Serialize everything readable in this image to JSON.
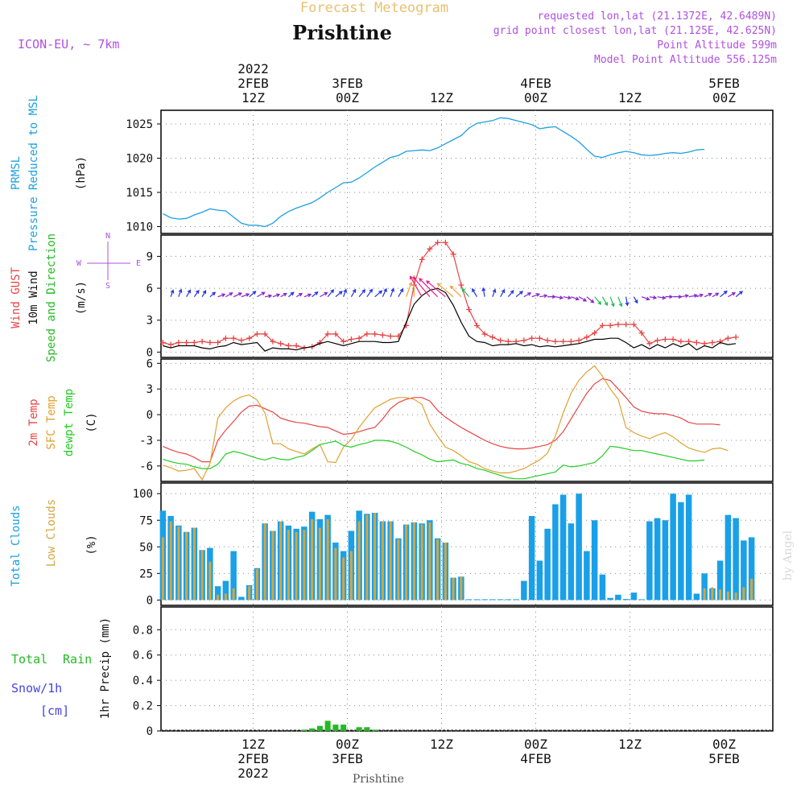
{
  "header": {
    "super_title": "Forecast Meteogram",
    "station": "Prishtine",
    "model": "ICON-EU, ~ 7km",
    "requested_point": "requested lon,lat (21.1372E, 42.6489N)",
    "grid_point": "grid point closest lon,lat (21.125E, 42.625N)",
    "point_altitude": "Point Altitude 599m",
    "model_altitude": "Model Point Altitude 556.125m",
    "footer_station": "Prishtine",
    "watermark": "by Angel"
  },
  "time_axis": {
    "hours": [
      0,
      12,
      24,
      36,
      48
    ],
    "top_labels": [
      {
        "hour": 0,
        "lines": [
          "2022",
          "2FEB",
          "12Z"
        ]
      },
      {
        "hour": 12,
        "lines": [
          "3FEB",
          "00Z"
        ]
      },
      {
        "hour": 24,
        "lines": [
          "12Z"
        ]
      },
      {
        "hour": 36,
        "lines": [
          "4FEB",
          "00Z"
        ]
      },
      {
        "hour": 48,
        "lines": [
          "12Z"
        ]
      },
      {
        "hour": 60,
        "lines": [
          "5FEB",
          "00Z"
        ]
      }
    ],
    "bottom_labels": [
      {
        "hour": 0,
        "lines": [
          "12Z",
          "2FEB",
          "2022"
        ]
      },
      {
        "hour": 12,
        "lines": [
          "00Z",
          "3FEB"
        ]
      },
      {
        "hour": 24,
        "lines": [
          "12Z"
        ]
      },
      {
        "hour": 36,
        "lines": [
          "00Z",
          "4FEB"
        ]
      },
      {
        "hour": 48,
        "lines": [
          "12Z"
        ]
      },
      {
        "hour": 60,
        "lines": [
          "00Z",
          "5FEB"
        ]
      }
    ]
  },
  "colors": {
    "pressure": "#1e9fe0",
    "gust": "#e84444",
    "wind": "#000000",
    "wind_label_green": "#22bb22",
    "temp2m": "#e84444",
    "sfctemp": "#e0a030",
    "dewpt": "#22cc22",
    "total_clouds": "#1aa0e8",
    "low_clouds": "#d4a640",
    "rain": "#22bb22",
    "snow": "#4444dd",
    "purple": "#b050e0",
    "title_orange": "#e8c070"
  },
  "chart_data": [
    {
      "type": "line",
      "title": "PRMSL Pressure Reduced to MSL",
      "panel_labels": [
        "PRMSL",
        "Pressure Reduced to MSL"
      ],
      "ylabel": "(hPa)",
      "yticks": [
        1010,
        1015,
        1020,
        1025
      ],
      "ylim": [
        1009,
        1027
      ],
      "x_start": -11.5,
      "x_step": 1,
      "series": [
        {
          "name": "PRMSL",
          "values": [
            1011.9,
            1011.3,
            1011.1,
            1011.2,
            1011.7,
            1012.1,
            1012.6,
            1012.4,
            1012.3,
            1011.4,
            1010.5,
            1010.2,
            1010.2,
            1010.0,
            1010.5,
            1011.5,
            1012.2,
            1012.7,
            1013.1,
            1013.5,
            1014.2,
            1015.0,
            1015.7,
            1016.4,
            1016.5,
            1017.1,
            1017.9,
            1018.7,
            1019.4,
            1020.1,
            1020.4,
            1021.0,
            1021.1,
            1021.2,
            1021.1,
            1021.5,
            1022.1,
            1022.7,
            1023.3,
            1024.4,
            1025.1,
            1025.3,
            1025.5,
            1025.9,
            1025.8,
            1025.5,
            1025.2,
            1024.9,
            1024.3,
            1024.5,
            1024.6,
            1023.9,
            1023.2,
            1022.4,
            1021.3,
            1020.3,
            1020.1,
            1020.5,
            1020.8,
            1021.0,
            1020.8,
            1020.5,
            1020.4,
            1020.5,
            1020.7,
            1020.8,
            1020.7,
            1020.9,
            1021.2,
            1021.3
          ]
        }
      ]
    },
    {
      "type": "line",
      "title": "Wind GUST / 10m Wind Speed and Direction",
      "panel_labels": [
        "Wind GUST",
        "10m Wind",
        "Speed and Direction"
      ],
      "ylabel": "(m/s)",
      "compass": [
        "N",
        "W",
        "E",
        "S"
      ],
      "yticks": [
        0,
        3,
        6,
        9
      ],
      "ylim": [
        -0.5,
        11
      ],
      "x_start": -11.5,
      "x_step": 1,
      "series": [
        {
          "name": "Wind GUST",
          "values": [
            0.9,
            0.7,
            0.9,
            0.9,
            0.9,
            1.0,
            0.9,
            0.9,
            1.3,
            1.3,
            1.1,
            1.3,
            1.7,
            1.7,
            1.0,
            0.8,
            0.6,
            0.6,
            0.4,
            0.5,
            0.9,
            1.7,
            1.7,
            1.0,
            1.2,
            1.3,
            1.7,
            1.7,
            1.6,
            1.5,
            1.5,
            2.5,
            6.3,
            8.7,
            9.7,
            10.3,
            10.3,
            9.2,
            6.3,
            4.0,
            2.5,
            1.7,
            1.4,
            1.1,
            1.0,
            1.0,
            1.1,
            1.3,
            1.3,
            1.1,
            1.0,
            1.0,
            1.0,
            1.1,
            1.4,
            1.8,
            2.5,
            2.5,
            2.6,
            2.6,
            2.6,
            1.8,
            0.8,
            1.1,
            1.2,
            1.2,
            1.0,
            1.0,
            0.9,
            0.8,
            0.9,
            1.0,
            1.3,
            1.4
          ]
        },
        {
          "name": "10m Wind",
          "values": [
            0.6,
            0.4,
            0.6,
            0.6,
            0.6,
            0.4,
            0.3,
            0.5,
            0.6,
            0.9,
            0.7,
            0.8,
            0.9,
            0.1,
            0.4,
            0.3,
            0.3,
            0.2,
            0.4,
            0.5,
            0.8,
            1.0,
            0.8,
            0.6,
            0.8,
            1.0,
            1.0,
            1.0,
            0.9,
            0.9,
            1.0,
            2.8,
            4.5,
            5.3,
            5.8,
            6.0,
            5.6,
            4.4,
            2.8,
            1.5,
            1.0,
            0.9,
            0.6,
            0.7,
            0.7,
            0.8,
            0.6,
            0.7,
            0.5,
            0.6,
            0.5,
            0.6,
            0.7,
            0.8,
            1.0,
            1.2,
            1.2,
            1.3,
            1.3,
            0.9,
            0.4,
            0.7,
            0.3,
            0.7,
            0.4,
            0.8,
            0.5,
            0.8,
            0.2,
            0.6,
            0.4,
            0.9,
            0.7,
            0.8
          ]
        }
      ],
      "barbs": {
        "y_level": 5.2,
        "dirs_deg": [
          200,
          200,
          210,
          215,
          210,
          230,
          250,
          240,
          245,
          250,
          230,
          240,
          260,
          250,
          240,
          230,
          240,
          250,
          230,
          240,
          220,
          230,
          200,
          210,
          220,
          215,
          230,
          205,
          200,
          210,
          200,
          180,
          150,
          140,
          135,
          130,
          130,
          135,
          140,
          150,
          170,
          200,
          210,
          220,
          230,
          240,
          250,
          260,
          270,
          280,
          280,
          290,
          300,
          310,
          320,
          330,
          340,
          340,
          350,
          330,
          290,
          280,
          280,
          270,
          270,
          260,
          260,
          250,
          245,
          240,
          230,
          240,
          230
        ]
      }
    },
    {
      "type": "line",
      "title": "2m Temp / SFC Temp / dewpt Temp",
      "panel_labels": [
        "2m Temp",
        "SFC Temp",
        "dewpt Temp"
      ],
      "ylabel": "(C)",
      "yticks": [
        -6,
        -3,
        0,
        3,
        6
      ],
      "ylim": [
        -7.8,
        6.5
      ],
      "x_start": -11.5,
      "x_step": 1,
      "series": [
        {
          "name": "2m Temp",
          "values": [
            -3.7,
            -4.1,
            -4.4,
            -4.6,
            -5.0,
            -5.5,
            -5.5,
            -3.0,
            -1.8,
            -0.8,
            0.3,
            1.0,
            1.1,
            0.7,
            0.3,
            -0.4,
            -0.7,
            -0.9,
            -1.0,
            -1.2,
            -1.4,
            -1.5,
            -1.9,
            -2.3,
            -2.2,
            -2.0,
            -1.7,
            -1.5,
            -0.5,
            0.7,
            1.4,
            1.8,
            2.0,
            2.0,
            1.6,
            0.5,
            -0.3,
            -0.9,
            -1.5,
            -2.0,
            -2.5,
            -3.0,
            -3.4,
            -3.7,
            -3.9,
            -4.0,
            -4.0,
            -3.9,
            -3.7,
            -3.5,
            -3.0,
            -2.0,
            -0.5,
            1.0,
            2.5,
            3.6,
            4.2,
            4.0,
            3.0,
            2.0,
            0.9,
            0.4,
            0.2,
            0.1,
            0.1,
            -0.1,
            -0.4,
            -0.9,
            -1.1,
            -1.1,
            -1.1,
            -1.2
          ]
        },
        {
          "name": "SFC Temp",
          "values": [
            -5.9,
            -6.2,
            -6.6,
            -6.5,
            -6.3,
            -7.6,
            -5.7,
            -0.4,
            0.8,
            1.6,
            2.1,
            2.3,
            1.7,
            0.2,
            -3.4,
            -3.4,
            -4.0,
            -4.3,
            -4.6,
            -4.0,
            -3.5,
            -5.5,
            -5.6,
            -3.8,
            -2.9,
            -1.5,
            -0.3,
            0.8,
            1.3,
            1.8,
            2.0,
            2.0,
            1.8,
            1.2,
            -1.1,
            -2.5,
            -3.8,
            -4.2,
            -4.8,
            -5.5,
            -5.8,
            -6.3,
            -6.6,
            -6.8,
            -6.8,
            -6.6,
            -6.3,
            -5.8,
            -5.3,
            -4.5,
            -2.5,
            0.2,
            2.5,
            4.0,
            5.0,
            5.7,
            4.5,
            3.0,
            1.8,
            -1.5,
            -2.1,
            -2.5,
            -2.8,
            -2.4,
            -2.1,
            -2.6,
            -3.3,
            -3.9,
            -4.2,
            -4.4,
            -4.0,
            -3.9,
            -4.2
          ]
        },
        {
          "name": "dewpt Temp",
          "values": [
            -5.2,
            -5.5,
            -5.7,
            -5.8,
            -6.1,
            -6.3,
            -6.3,
            -5.8,
            -4.6,
            -4.3,
            -4.5,
            -4.8,
            -5.1,
            -5.3,
            -5.0,
            -5.2,
            -5.3,
            -5.0,
            -4.8,
            -4.2,
            -3.5,
            -3.3,
            -3.1,
            -3.6,
            -3.8,
            -3.5,
            -3.3,
            -3.0,
            -3.0,
            -3.1,
            -3.4,
            -3.8,
            -4.3,
            -4.7,
            -5.2,
            -5.5,
            -5.4,
            -5.3,
            -5.7,
            -5.9,
            -6.3,
            -6.5,
            -6.8,
            -7.1,
            -7.4,
            -7.5,
            -7.5,
            -7.3,
            -7.1,
            -6.9,
            -6.7,
            -5.9,
            -6.1,
            -6.0,
            -5.8,
            -5.6,
            -4.8,
            -3.7,
            -3.8,
            -4.0,
            -4.2,
            -4.2,
            -4.4,
            -4.6,
            -4.8,
            -5.0,
            -5.2,
            -5.4,
            -5.4,
            -5.3
          ]
        }
      ]
    },
    {
      "type": "bar",
      "title": "Total Clouds / Low Clouds",
      "panel_labels": [
        "Total Clouds",
        "Low Clouds"
      ],
      "ylabel": "(%)",
      "yticks": [
        0,
        25,
        50,
        75,
        100
      ],
      "ylim": [
        -5,
        110
      ],
      "x_start": -11.5,
      "x_step": 1,
      "series": [
        {
          "name": "Total Clouds",
          "values": [
            84,
            79,
            70,
            64,
            68,
            47,
            49,
            13,
            18,
            46,
            3,
            14,
            30,
            72,
            65,
            74,
            70,
            67,
            69,
            83,
            76,
            80,
            54,
            46,
            65,
            84,
            81,
            82,
            74,
            74,
            58,
            71,
            73,
            72,
            75,
            58,
            54,
            21,
            22,
            0,
            0,
            0,
            0,
            0,
            0,
            0,
            18,
            79,
            37,
            67,
            90,
            99,
            72,
            100,
            46,
            75,
            24,
            2,
            5,
            1,
            7,
            0,
            74,
            77,
            75,
            100,
            92,
            99,
            6,
            25,
            11,
            37,
            80,
            77,
            56,
            59
          ]
        },
        {
          "name": "Low Clouds",
          "values": [
            59,
            74,
            69,
            64,
            68,
            47,
            36,
            5,
            6,
            11,
            0,
            13,
            29,
            72,
            65,
            74,
            66,
            64,
            66,
            76,
            68,
            76,
            49,
            40,
            46,
            74,
            80,
            82,
            74,
            74,
            57,
            71,
            73,
            71,
            73,
            57,
            54,
            21,
            22,
            0,
            0,
            0,
            0,
            0,
            0,
            0,
            0,
            0,
            0,
            0,
            0,
            0,
            0,
            0,
            0,
            0,
            0,
            0,
            0,
            0,
            0,
            0,
            0,
            0,
            0,
            0,
            0,
            0,
            0,
            11,
            12,
            10,
            8,
            7,
            12,
            20
          ]
        }
      ]
    },
    {
      "type": "bar",
      "title": "1hr Precip",
      "panel_labels": [
        "Total",
        "Rain",
        "Snow/1h",
        "[cm]"
      ],
      "ylabel": "1hr Precip (mm)",
      "yticks": [
        0,
        0.2,
        0.4,
        0.6,
        0.8
      ],
      "ytick_labels": [
        "0",
        "0.2",
        "0.4",
        "0.6",
        "0.8"
      ],
      "ylim": [
        0,
        0.98
      ],
      "x_start": -11.5,
      "x_step": 1,
      "series": [
        {
          "name": "Total Rain",
          "values": [
            0,
            0,
            0,
            0,
            0,
            0,
            0,
            0,
            0,
            0,
            0,
            0,
            0,
            0,
            0,
            0,
            0,
            0,
            0.01,
            0.02,
            0.04,
            0.08,
            0.05,
            0.05,
            0,
            0.03,
            0.03,
            0.01,
            0,
            0,
            0,
            0,
            0,
            0,
            0,
            0,
            0,
            0,
            0,
            0,
            0,
            0,
            0,
            0,
            0,
            0,
            0,
            0,
            0,
            0,
            0,
            0,
            0,
            0,
            0,
            0,
            0,
            0,
            0,
            0,
            0,
            0,
            0,
            0,
            0,
            0,
            0,
            0,
            0,
            0,
            0,
            0,
            0,
            0,
            0,
            0
          ]
        }
      ]
    }
  ]
}
